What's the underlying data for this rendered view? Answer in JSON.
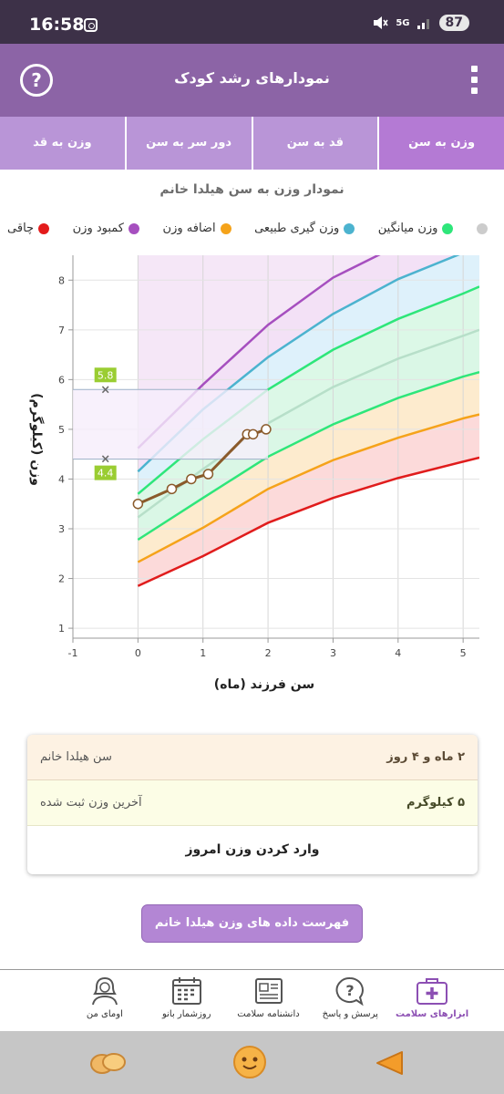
{
  "status_bar": {
    "time": "16:58",
    "signal": "5G",
    "battery": "87"
  },
  "app_bar": {
    "title": "نمودارهای رشد کودک",
    "help_symbol": "?"
  },
  "tabs": [
    {
      "label": "وزن به سن",
      "active": true
    },
    {
      "label": "قد به سن",
      "active": false
    },
    {
      "label": "دور سر به سن",
      "active": false
    },
    {
      "label": "وزن به قد",
      "active": false
    }
  ],
  "chart": {
    "title": "نمودار وزن به سن هیلدا خانم"
  },
  "legend": [
    {
      "label": "چاقی",
      "color": "#e31b1b"
    },
    {
      "label": "کمبود وزن",
      "color": "#a64fbf"
    },
    {
      "label": "اضافه وزن",
      "color": "#f5a31a"
    },
    {
      "label": "وزن گیری طبیعی",
      "color": "#4cb3cf"
    },
    {
      "label": "وزن میانگین",
      "color": "#2ee67a"
    },
    {
      "label": "",
      "color": "#cccccc"
    }
  ],
  "chart_data": {
    "type": "line",
    "title": "نمودار وزن به سن هیلدا خانم",
    "xlabel": "سن فرزند (ماه)",
    "ylabel": "وزن (کیلوگرم)",
    "xlim": [
      -1,
      5.25
    ],
    "ylim": [
      0.8,
      8.5
    ],
    "x_ticks": [
      -1,
      0,
      1,
      2,
      3,
      4,
      5
    ],
    "y_ticks": [
      1,
      2,
      3,
      4,
      5,
      6,
      7,
      8
    ],
    "grid": true,
    "reference_x": [
      0,
      1,
      2,
      3,
      4,
      5,
      5.25
    ],
    "reference_series": [
      {
        "name": "red",
        "color": "#e01c1c",
        "values": [
          1.85,
          2.45,
          3.12,
          3.62,
          4.02,
          4.35,
          4.43
        ]
      },
      {
        "name": "orange",
        "color": "#f5a31a",
        "values": [
          2.33,
          3.02,
          3.8,
          4.38,
          4.83,
          5.22,
          5.3
        ]
      },
      {
        "name": "green",
        "color": "#2ee67a",
        "values": [
          2.78,
          3.62,
          4.45,
          5.1,
          5.63,
          6.06,
          6.15
        ]
      },
      {
        "name": "grey",
        "color": "#b7dfc9",
        "values": [
          3.23,
          4.2,
          5.12,
          5.85,
          6.42,
          6.88,
          7.0
        ]
      },
      {
        "name": "green-upper",
        "color": "#2ee67a",
        "values": [
          3.7,
          4.8,
          5.8,
          6.6,
          7.22,
          7.73,
          7.87
        ]
      },
      {
        "name": "blue",
        "color": "#4cb3cf",
        "values": [
          4.15,
          5.4,
          6.45,
          7.32,
          8.02,
          8.55,
          8.7
        ]
      },
      {
        "name": "purple",
        "color": "#a64fbf",
        "values": [
          4.62,
          5.9,
          7.1,
          8.05,
          8.7,
          9.2,
          9.3
        ]
      }
    ],
    "child_series": {
      "name": "",
      "color": "#8a5a2b",
      "x": [
        0,
        0.52,
        0.82,
        1.08,
        1.68,
        1.77,
        1.97
      ],
      "values": [
        3.5,
        3.8,
        4.0,
        4.1,
        4.9,
        4.9,
        5.0
      ]
    },
    "range_markers": {
      "x": -0.5,
      "low": 4.4,
      "high": 5.8,
      "low_label": "4.4",
      "high_label": "5.8"
    }
  },
  "info": {
    "age_label": "سن هیلدا خانم",
    "age_value": "۲ ماه و ۴ روز",
    "weight_label": "آخرین وزن ثبت شده",
    "weight_value": "۵ کیلوگرم",
    "add_weight": "وارد کردن وزن امروز"
  },
  "list_button": "فهرست داده های وزن هیلدا خانم",
  "bottom_nav": [
    {
      "label": "ابزارهای سلامت",
      "icon": "medical-kit-icon",
      "active": true
    },
    {
      "label": "پرسش و پاسخ",
      "icon": "question-bubble-icon",
      "active": false
    },
    {
      "label": "دانشنامه سلامت",
      "icon": "newspaper-icon",
      "active": false
    },
    {
      "label": "روزشمار بانو",
      "icon": "calendar-icon",
      "active": false
    },
    {
      "label": "اومای من",
      "icon": "woman-avatar-icon",
      "active": false
    }
  ],
  "colors": {
    "app_bar": "#8c64a6",
    "tabs": "#b995d7",
    "accent": "#b386d4"
  }
}
